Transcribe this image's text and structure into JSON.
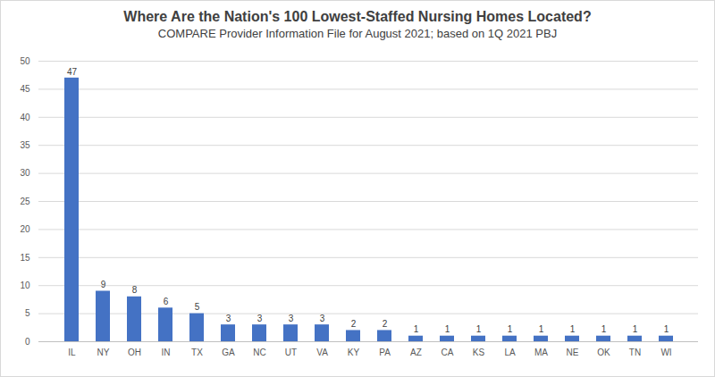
{
  "chart_data": {
    "type": "bar",
    "title": "Where Are the Nation's 100 Lowest-Staffed Nursing Homes Located?",
    "subtitle": "COMPARE Provider Information File for August 2021; based on 1Q 2021 PBJ",
    "categories": [
      "IL",
      "NY",
      "OH",
      "IN",
      "TX",
      "GA",
      "NC",
      "UT",
      "VA",
      "KY",
      "PA",
      "AZ",
      "CA",
      "KS",
      "LA",
      "MA",
      "NE",
      "OK",
      "TN",
      "WI"
    ],
    "values": [
      47,
      9,
      8,
      6,
      5,
      3,
      3,
      3,
      3,
      2,
      2,
      1,
      1,
      1,
      1,
      1,
      1,
      1,
      1,
      1
    ],
    "color": "#4472c4",
    "ylim": [
      0,
      50
    ],
    "yticks": [
      0,
      5,
      10,
      15,
      20,
      25,
      30,
      35,
      40,
      45,
      50
    ],
    "grid": true,
    "data_labels": true
  }
}
